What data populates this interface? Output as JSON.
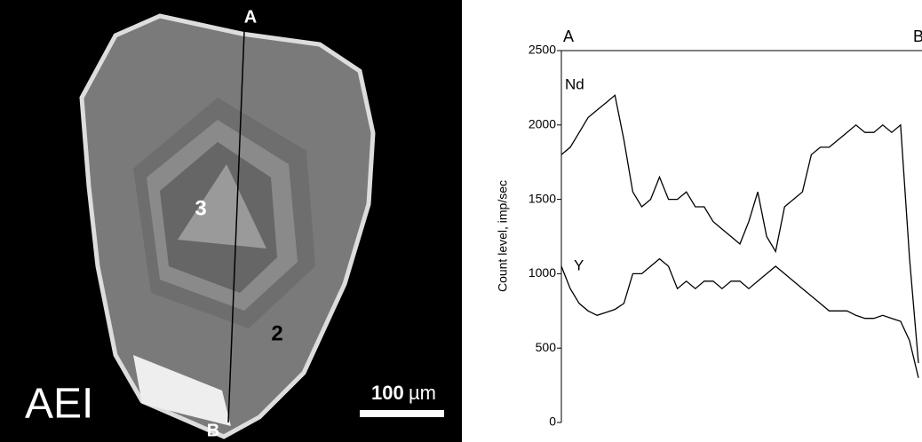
{
  "image": {
    "label": "AEI",
    "scale_value": "100",
    "scale_unit": "µm",
    "point_a": "A",
    "point_b": "B",
    "spot_2": "2",
    "spot_3": "3"
  },
  "chart_data": {
    "type": "line",
    "ylabel": "Count level, imp/sec",
    "start_label": "A",
    "end_label": "B",
    "categories": [
      null,
      null,
      null,
      null,
      null,
      null,
      null,
      null,
      null,
      null,
      null,
      null,
      null,
      null,
      null,
      null,
      null,
      null,
      null,
      null,
      null,
      null,
      null,
      null,
      null,
      null,
      null,
      null,
      null,
      null,
      null,
      null,
      null,
      null,
      null,
      null,
      null,
      null,
      null,
      null,
      null
    ],
    "series": [
      {
        "name": "Nd",
        "color": "#000000",
        "values": [
          1800,
          1850,
          1950,
          2050,
          2100,
          2150,
          2200,
          1900,
          1550,
          1450,
          1500,
          1650,
          1500,
          1500,
          1550,
          1450,
          1450,
          1350,
          1300,
          1250,
          1200,
          1350,
          1550,
          1250,
          1150,
          1450,
          1500,
          1550,
          1800,
          1850,
          1850,
          1900,
          1950,
          2000,
          1950,
          1950,
          2000,
          1950,
          2000,
          1100,
          400
        ]
      },
      {
        "name": "Y",
        "color": "#000000",
        "values": [
          1050,
          900,
          800,
          750,
          720,
          740,
          760,
          800,
          1000,
          1000,
          1050,
          1100,
          1050,
          900,
          950,
          900,
          950,
          950,
          900,
          950,
          950,
          900,
          950,
          1000,
          1050,
          1000,
          950,
          900,
          850,
          800,
          750,
          750,
          750,
          720,
          700,
          700,
          720,
          700,
          680,
          550,
          300
        ]
      }
    ],
    "ylim": [
      0,
      2500
    ],
    "yticks": [
      0,
      500,
      1000,
      1500,
      2000,
      2500
    ]
  }
}
